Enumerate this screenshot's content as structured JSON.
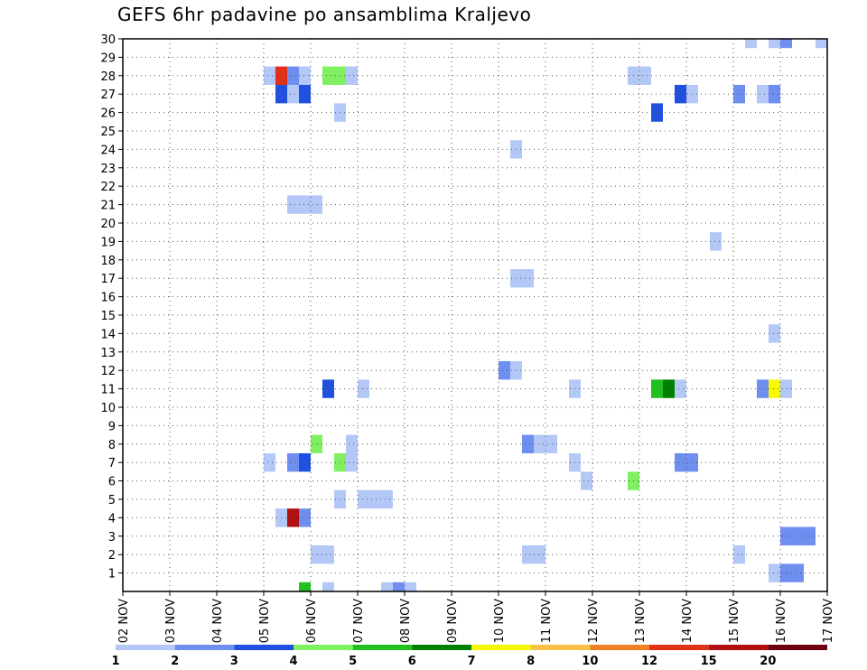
{
  "chart_data": {
    "type": "heatmap",
    "title": "GEFS 6hr padavine po ansamblima Kraljevo",
    "xlabel": "",
    "ylabel": "",
    "x_ticks": [
      "02 NOV",
      "03 NOV",
      "04 NOV",
      "05 NOV",
      "06 NOV",
      "07 NOV",
      "08 NOV",
      "09 NOV",
      "10 NOV",
      "11 NOV",
      "12 NOV",
      "13 NOV",
      "14 NOV",
      "15 NOV",
      "16 NOV",
      "17 NOV"
    ],
    "x_unit": "day",
    "x_range": [
      0,
      15
    ],
    "y_ticks": [
      1,
      2,
      3,
      4,
      5,
      6,
      7,
      8,
      9,
      10,
      11,
      12,
      13,
      14,
      15,
      16,
      17,
      18,
      19,
      20,
      21,
      22,
      23,
      24,
      25,
      26,
      27,
      28,
      29,
      30
    ],
    "y_range": [
      0,
      30
    ],
    "members": 30,
    "grid": true,
    "colorbar": {
      "labels": [
        "1",
        "2",
        "3",
        "4",
        "5",
        "6",
        "7",
        "8",
        "10",
        "12",
        "15",
        "20"
      ],
      "colors": [
        "#b4c8f8",
        "#6e8ef0",
        "#2050e0",
        "#80f060",
        "#20c020",
        "#008000",
        "#f8f800",
        "#f8c048",
        "#f08020",
        "#e03018",
        "#b01010",
        "#700010"
      ]
    },
    "cells": [
      {
        "t": 3.0,
        "m": 28,
        "c": 0
      },
      {
        "t": 3.25,
        "m": 28,
        "c": 9
      },
      {
        "t": 3.5,
        "m": 28,
        "c": 1
      },
      {
        "t": 3.75,
        "m": 28,
        "c": 0
      },
      {
        "t": 4.25,
        "m": 28,
        "c": 3
      },
      {
        "t": 4.5,
        "m": 28,
        "c": 3
      },
      {
        "t": 4.75,
        "m": 28,
        "c": 0
      },
      {
        "t": 10.75,
        "m": 28,
        "c": 0
      },
      {
        "t": 11.0,
        "m": 28,
        "c": 0
      },
      {
        "t": 3.25,
        "m": 27,
        "c": 2
      },
      {
        "t": 3.5,
        "m": 27,
        "c": 0
      },
      {
        "t": 3.75,
        "m": 27,
        "c": 2
      },
      {
        "t": 11.75,
        "m": 27,
        "c": 2
      },
      {
        "t": 12.0,
        "m": 27,
        "c": 0
      },
      {
        "t": 13.0,
        "m": 27,
        "c": 1
      },
      {
        "t": 13.5,
        "m": 27,
        "c": 0
      },
      {
        "t": 13.75,
        "m": 27,
        "c": 1
      },
      {
        "t": 4.5,
        "m": 26,
        "c": 0
      },
      {
        "t": 11.25,
        "m": 26,
        "c": 2
      },
      {
        "t": 8.25,
        "m": 24,
        "c": 0
      },
      {
        "t": 3.5,
        "m": 21,
        "c": 0
      },
      {
        "t": 3.75,
        "m": 21,
        "c": 0
      },
      {
        "t": 4.0,
        "m": 21,
        "c": 0
      },
      {
        "t": 12.5,
        "m": 19,
        "c": 0
      },
      {
        "t": 8.25,
        "m": 17,
        "c": 0
      },
      {
        "t": 8.5,
        "m": 17,
        "c": 0
      },
      {
        "t": 13.75,
        "m": 14,
        "c": 0
      },
      {
        "t": 8.0,
        "m": 12,
        "c": 1
      },
      {
        "t": 8.25,
        "m": 12,
        "c": 0
      },
      {
        "t": 4.25,
        "m": 11,
        "c": 2
      },
      {
        "t": 5.0,
        "m": 11,
        "c": 0
      },
      {
        "t": 9.5,
        "m": 11,
        "c": 0
      },
      {
        "t": 11.25,
        "m": 11,
        "c": 4
      },
      {
        "t": 11.5,
        "m": 11,
        "c": 5
      },
      {
        "t": 11.75,
        "m": 11,
        "c": 0
      },
      {
        "t": 13.5,
        "m": 11,
        "c": 1
      },
      {
        "t": 13.75,
        "m": 11,
        "c": 6
      },
      {
        "t": 14.0,
        "m": 11,
        "c": 0
      },
      {
        "t": 4.0,
        "m": 8,
        "c": 3
      },
      {
        "t": 4.75,
        "m": 8,
        "c": 0
      },
      {
        "t": 8.5,
        "m": 8,
        "c": 1
      },
      {
        "t": 8.75,
        "m": 8,
        "c": 0
      },
      {
        "t": 9.0,
        "m": 8,
        "c": 0
      },
      {
        "t": 3.0,
        "m": 7,
        "c": 0
      },
      {
        "t": 3.5,
        "m": 7,
        "c": 1
      },
      {
        "t": 3.75,
        "m": 7,
        "c": 2
      },
      {
        "t": 4.5,
        "m": 7,
        "c": 3
      },
      {
        "t": 4.75,
        "m": 7,
        "c": 0
      },
      {
        "t": 9.5,
        "m": 7,
        "c": 0
      },
      {
        "t": 11.75,
        "m": 7,
        "c": 1
      },
      {
        "t": 12.0,
        "m": 7,
        "c": 1
      },
      {
        "t": 9.75,
        "m": 6,
        "c": 0
      },
      {
        "t": 10.75,
        "m": 6,
        "c": 3
      },
      {
        "t": 4.5,
        "m": 5,
        "c": 0
      },
      {
        "t": 5.0,
        "m": 5,
        "c": 0
      },
      {
        "t": 5.25,
        "m": 5,
        "c": 0
      },
      {
        "t": 5.5,
        "m": 5,
        "c": 0
      },
      {
        "t": 3.25,
        "m": 4,
        "c": 0
      },
      {
        "t": 3.5,
        "m": 4,
        "c": 10
      },
      {
        "t": 3.75,
        "m": 4,
        "c": 1
      },
      {
        "t": 14.0,
        "m": 3,
        "c": 1
      },
      {
        "t": 14.25,
        "m": 3,
        "c": 1
      },
      {
        "t": 14.5,
        "m": 3,
        "c": 1
      },
      {
        "t": 4.0,
        "m": 2,
        "c": 0
      },
      {
        "t": 4.25,
        "m": 2,
        "c": 0
      },
      {
        "t": 8.5,
        "m": 2,
        "c": 0
      },
      {
        "t": 8.75,
        "m": 2,
        "c": 0
      },
      {
        "t": 13.0,
        "m": 2,
        "c": 0
      },
      {
        "t": 13.75,
        "m": 1,
        "c": 0
      },
      {
        "t": 14.0,
        "m": 1,
        "c": 1
      },
      {
        "t": 14.25,
        "m": 1,
        "c": 1
      },
      {
        "t": 3.75,
        "m": 0,
        "c": 4
      },
      {
        "t": 4.25,
        "m": 0,
        "c": 0
      },
      {
        "t": 5.5,
        "m": 0,
        "c": 0
      },
      {
        "t": 5.75,
        "m": 0,
        "c": 1
      },
      {
        "t": 6.0,
        "m": 0,
        "c": 0
      },
      {
        "t": 13.25,
        "m": 30,
        "c": 0
      },
      {
        "t": 13.75,
        "m": 30,
        "c": 0
      },
      {
        "t": 14.0,
        "m": 30,
        "c": 1
      },
      {
        "t": 14.75,
        "m": 30,
        "c": 0
      }
    ]
  }
}
